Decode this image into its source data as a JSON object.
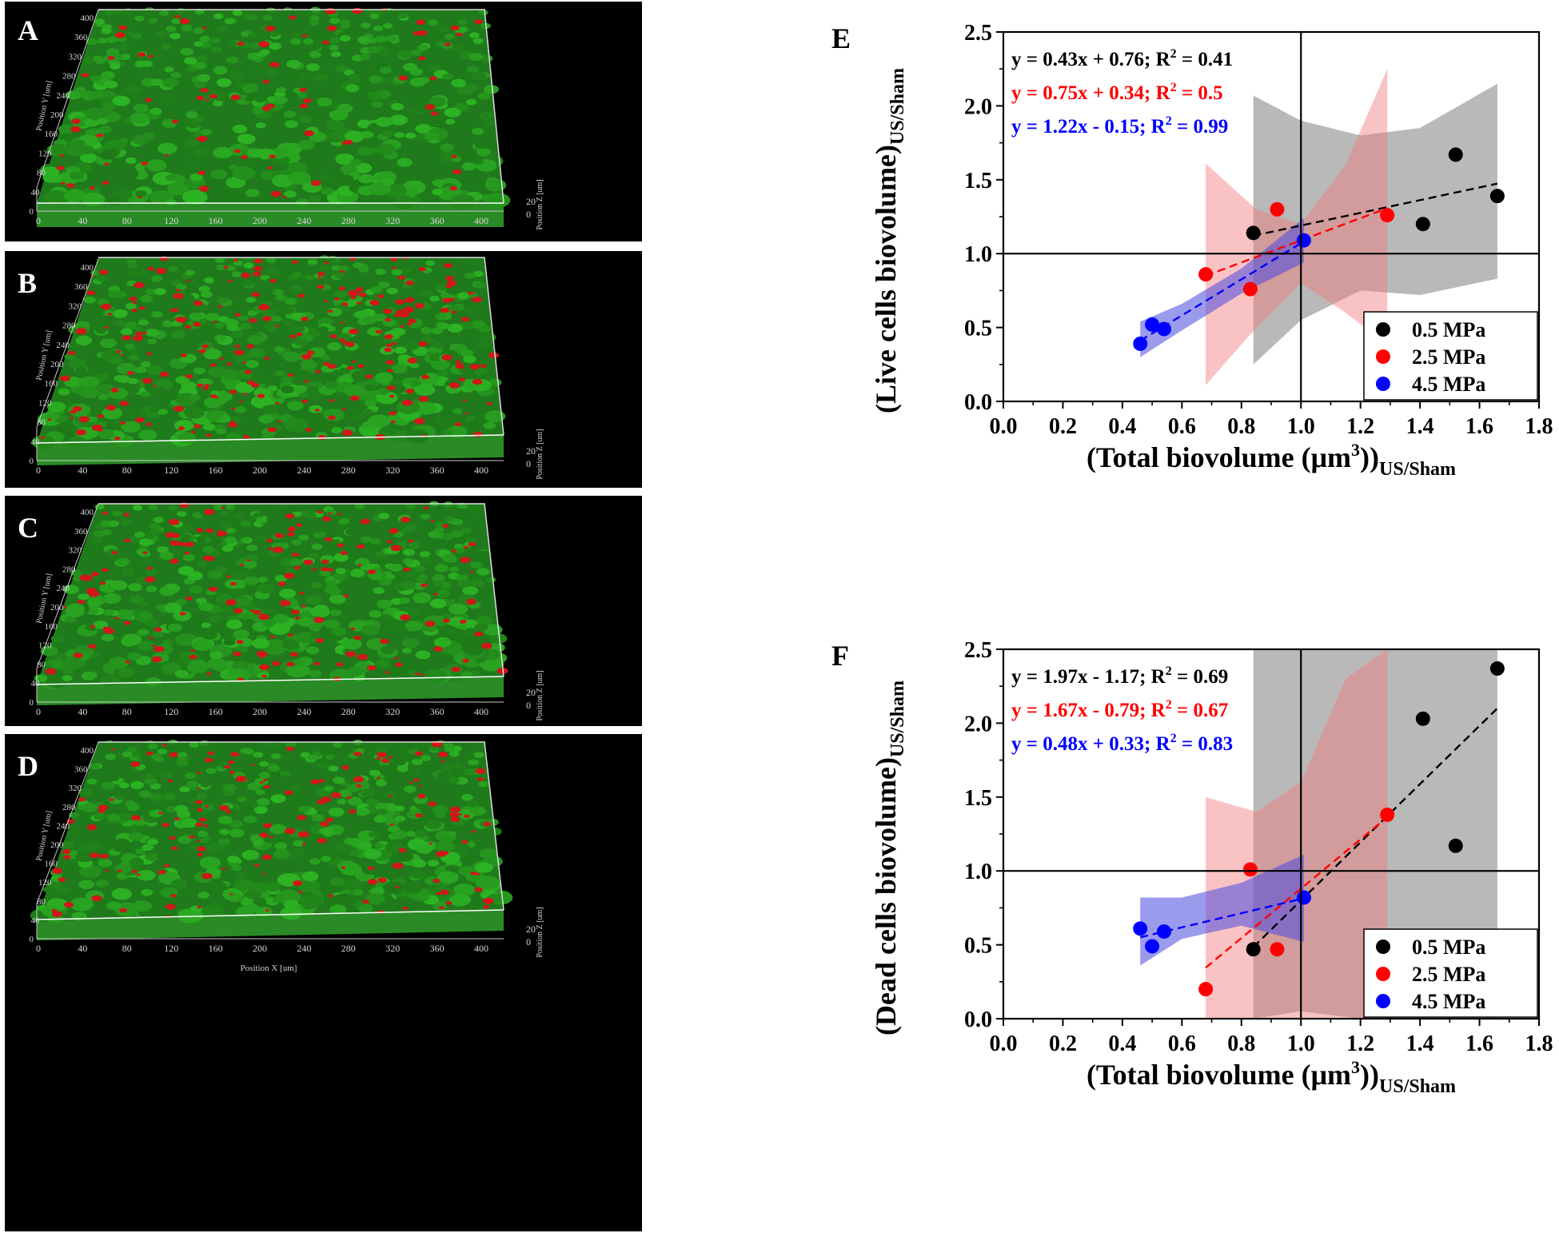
{
  "colors": {
    "biofilm_green": "#2f9a2a",
    "biofilm_red": "#d01818",
    "series_black": "#000000",
    "series_red": "#ff0000",
    "series_blue": "#0000ff",
    "band_black": "#7f7f7f",
    "band_red": "#f47a7a",
    "band_blue": "#4848e0"
  },
  "images": [
    {
      "letter": "A",
      "y_axis_title": "Position Y [um]",
      "z_axis_title": "Position Z [um]",
      "x_axis_title": "",
      "y_ticks": [
        "400",
        "360",
        "320",
        "280",
        "240",
        "200",
        "160",
        "120",
        "80",
        "40",
        "0"
      ],
      "x_ticks": [
        "0",
        "40",
        "80",
        "120",
        "160",
        "200",
        "240",
        "280",
        "320",
        "360",
        "400"
      ],
      "z_ticks": [
        "20",
        "0"
      ],
      "red_density": 0.25
    },
    {
      "letter": "B",
      "y_axis_title": "Position Y [um]",
      "z_axis_title": "Position Z [um]",
      "x_axis_title": "",
      "y_ticks": [
        "400",
        "360",
        "320",
        "280",
        "240",
        "200",
        "160",
        "120",
        "80",
        "40",
        "0"
      ],
      "x_ticks": [
        "0",
        "40",
        "80",
        "120",
        "160",
        "200",
        "240",
        "280",
        "320",
        "360",
        "400"
      ],
      "z_ticks": [
        "20",
        "0"
      ],
      "red_density": 0.75
    },
    {
      "letter": "C",
      "y_axis_title": "Position Y [um]",
      "z_axis_title": "Position Z [um]",
      "x_axis_title": "",
      "y_ticks": [
        "400",
        "360",
        "320",
        "280",
        "240",
        "200",
        "160",
        "120",
        "80",
        "40",
        "0"
      ],
      "x_ticks": [
        "0",
        "40",
        "80",
        "120",
        "160",
        "200",
        "240",
        "280",
        "320",
        "360",
        "400"
      ],
      "z_ticks": [
        "20",
        "0"
      ],
      "red_density": 0.5
    },
    {
      "letter": "D",
      "y_axis_title": "Position Y [um]",
      "z_axis_title": "Position Z [um]",
      "x_axis_title": "Position X [um]",
      "y_ticks": [
        "400",
        "360",
        "320",
        "280",
        "240",
        "200",
        "160",
        "120",
        "80",
        "40",
        "0"
      ],
      "x_ticks": [
        "0",
        "40",
        "80",
        "120",
        "160",
        "200",
        "240",
        "280",
        "320",
        "360",
        "400"
      ],
      "z_ticks": [
        "20",
        "0"
      ],
      "red_density": 0.5
    }
  ],
  "chart_data": [
    {
      "panel": "E",
      "type": "scatter",
      "xlabel_main": "(Total biovolume (μm",
      "xlabel_sup": "3",
      "xlabel_close": "))",
      "xlabel_sub": "US/Sham",
      "ylabel_main": "(Live cells biovolume)",
      "ylabel_sub": "US/Sham",
      "xlim": [
        0.0,
        1.8
      ],
      "ylim": [
        0.0,
        2.5
      ],
      "x_ticks": [
        "0.0",
        "0.2",
        "0.4",
        "0.6",
        "0.8",
        "1.0",
        "1.2",
        "1.4",
        "1.6",
        "1.8"
      ],
      "y_ticks": [
        "0.0",
        "0.5",
        "1.0",
        "1.5",
        "2.0",
        "2.5"
      ],
      "reference_lines": {
        "x": 1.0,
        "y": 1.0
      },
      "equations": [
        {
          "pre": "y = 0.43x + 0.76; R",
          "sup": "2",
          "post": " = 0.41",
          "series": 0
        },
        {
          "pre": "y = 0.75x + 0.34; R",
          "sup": "2",
          "post": " = 0.5",
          "series": 1
        },
        {
          "pre": "y = 1.22x - 0.15; R",
          "sup": "2",
          "post": " = 0.99",
          "series": 2
        }
      ],
      "legend": {
        "position": "bottom-right"
      },
      "series": [
        {
          "name": "0.5 MPa",
          "points": [
            [
              0.84,
              1.14
            ],
            [
              1.41,
              1.2
            ],
            [
              1.52,
              1.67
            ],
            [
              1.66,
              1.39
            ]
          ],
          "fit": {
            "slope": 0.43,
            "intercept": 0.76,
            "x_range": [
              0.84,
              1.66
            ]
          },
          "band": {
            "x": [
              0.84,
              1.0,
              1.2,
              1.4,
              1.66
            ],
            "upper": [
              2.07,
              1.9,
              1.8,
              1.85,
              2.15
            ],
            "lower": [
              0.25,
              0.55,
              0.75,
              0.72,
              0.83
            ]
          }
        },
        {
          "name": "2.5 MPa",
          "points": [
            [
              0.68,
              0.86
            ],
            [
              0.83,
              0.76
            ],
            [
              0.92,
              1.3
            ],
            [
              1.29,
              1.26
            ]
          ],
          "fit": {
            "slope": 0.75,
            "intercept": 0.34,
            "x_range": [
              0.68,
              1.29
            ]
          },
          "band": {
            "x": [
              0.68,
              0.85,
              1.0,
              1.15,
              1.29
            ],
            "upper": [
              1.61,
              1.3,
              1.2,
              1.6,
              2.25
            ],
            "lower": [
              0.11,
              0.5,
              0.8,
              0.6,
              0.38
            ]
          }
        },
        {
          "name": "4.5 MPa",
          "points": [
            [
              0.46,
              0.39
            ],
            [
              0.5,
              0.52
            ],
            [
              0.54,
              0.49
            ],
            [
              1.01,
              1.09
            ]
          ],
          "fit": {
            "slope": 1.22,
            "intercept": -0.15,
            "x_range": [
              0.46,
              1.01
            ]
          },
          "band": {
            "x": [
              0.46,
              0.6,
              0.8,
              1.01
            ],
            "upper": [
              0.54,
              0.66,
              0.9,
              1.24
            ],
            "lower": [
              0.3,
              0.48,
              0.73,
              0.94
            ]
          }
        }
      ]
    },
    {
      "panel": "F",
      "type": "scatter",
      "xlabel_main": "(Total biovolume (μm",
      "xlabel_sup": "3",
      "xlabel_close": "))",
      "xlabel_sub": "US/Sham",
      "ylabel_main": "(Dead cells biovolume)",
      "ylabel_sub": "US/Sham",
      "xlim": [
        0.0,
        1.8
      ],
      "ylim": [
        0.0,
        2.5
      ],
      "x_ticks": [
        "0.0",
        "0.2",
        "0.4",
        "0.6",
        "0.8",
        "1.0",
        "1.2",
        "1.4",
        "1.6",
        "1.8"
      ],
      "y_ticks": [
        "0.0",
        "0.5",
        "1.0",
        "1.5",
        "2.0",
        "2.5"
      ],
      "reference_lines": {
        "x": 1.0,
        "y": 1.0
      },
      "equations": [
        {
          "pre": "y = 1.97x - 1.17; R",
          "sup": "2",
          "post": " = 0.69",
          "series": 0
        },
        {
          "pre": "y = 1.67x - 0.79; R",
          "sup": "2",
          "post": " = 0.67",
          "series": 1
        },
        {
          "pre": "y = 0.48x + 0.33; R",
          "sup": "2",
          "post": " = 0.83",
          "series": 2
        }
      ],
      "legend": {
        "position": "bottom-right"
      },
      "series": [
        {
          "name": "0.5 MPa",
          "points": [
            [
              0.84,
              0.47
            ],
            [
              1.41,
              2.03
            ],
            [
              1.52,
              1.17
            ],
            [
              1.66,
              2.37
            ]
          ],
          "fit": {
            "slope": 1.97,
            "intercept": -1.17,
            "x_range": [
              0.84,
              1.66
            ]
          },
          "band": {
            "x": [
              0.84,
              1.0,
              1.2,
              1.4,
              1.66
            ],
            "upper": [
              2.5,
              2.5,
              2.5,
              2.5,
              2.5
            ],
            "lower": [
              0.0,
              0.05,
              0.0,
              0.0,
              0.0
            ]
          }
        },
        {
          "name": "2.5 MPa",
          "points": [
            [
              0.68,
              0.2
            ],
            [
              0.83,
              1.01
            ],
            [
              0.92,
              0.47
            ],
            [
              1.29,
              1.38
            ]
          ],
          "fit": {
            "slope": 1.67,
            "intercept": -0.79,
            "x_range": [
              0.68,
              1.29
            ]
          },
          "band": {
            "x": [
              0.68,
              0.85,
              1.0,
              1.15,
              1.29
            ],
            "upper": [
              1.5,
              1.4,
              1.6,
              2.3,
              2.5
            ],
            "lower": [
              0.0,
              0.0,
              0.0,
              0.0,
              0.0
            ]
          }
        },
        {
          "name": "4.5 MPa",
          "points": [
            [
              0.46,
              0.61
            ],
            [
              0.5,
              0.49
            ],
            [
              0.54,
              0.59
            ],
            [
              1.01,
              0.82
            ]
          ],
          "fit": {
            "slope": 0.48,
            "intercept": 0.33,
            "x_range": [
              0.46,
              1.01
            ]
          },
          "band": {
            "x": [
              0.46,
              0.6,
              0.8,
              1.01
            ],
            "upper": [
              0.82,
              0.82,
              0.92,
              1.11
            ],
            "lower": [
              0.36,
              0.54,
              0.63,
              0.52
            ]
          }
        }
      ]
    }
  ]
}
